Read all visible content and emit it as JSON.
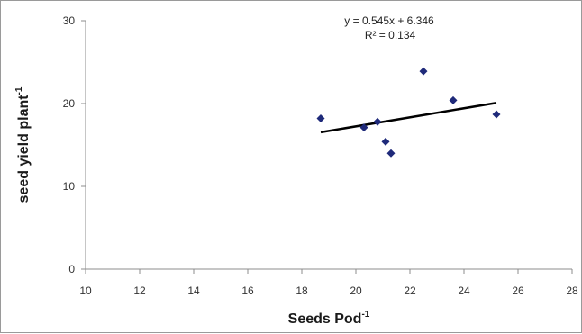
{
  "chart_data": {
    "type": "scatter",
    "xlabel": "Seeds Pod",
    "xlabel_sup": "-1",
    "ylabel": "seed yield plant",
    "ylabel_sup": "-1",
    "xlim": [
      10,
      28
    ],
    "ylim": [
      0,
      30
    ],
    "x_ticks": [
      "10",
      "12",
      "14",
      "16",
      "18",
      "20",
      "22",
      "24",
      "26",
      "28"
    ],
    "y_ticks": [
      "0",
      "10",
      "20",
      "30"
    ],
    "grid": false,
    "legend": "none",
    "series": [
      {
        "color": "#1f2a7a",
        "marker": "diamond",
        "points": [
          {
            "x": 18.7,
            "y": 18.2
          },
          {
            "x": 20.3,
            "y": 17.1
          },
          {
            "x": 20.8,
            "y": 17.8
          },
          {
            "x": 21.1,
            "y": 15.4
          },
          {
            "x": 21.3,
            "y": 14.0
          },
          {
            "x": 22.5,
            "y": 23.9
          },
          {
            "x": 23.6,
            "y": 20.4
          },
          {
            "x": 25.2,
            "y": 18.7
          }
        ]
      }
    ],
    "trendline": {
      "slope": 0.545,
      "intercept": 6.346,
      "x_range": [
        18.7,
        25.2
      ],
      "color": "#000000"
    },
    "annotations": [
      "y = 0.545x + 6.346",
      "R² = 0.134"
    ]
  }
}
